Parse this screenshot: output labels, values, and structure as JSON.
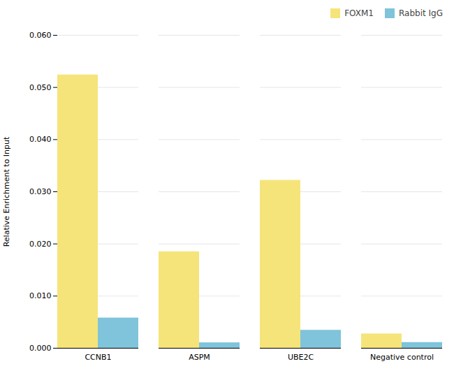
{
  "chart_data": {
    "type": "bar",
    "categories": [
      "CCNB1",
      "ASPM",
      "UBE2C",
      "Negative control"
    ],
    "series": [
      {
        "name": "FOXM1",
        "color": "#F5E47A",
        "values": [
          0.0524,
          0.0185,
          0.0322,
          0.00275
        ]
      },
      {
        "name": "Rabbit IgG",
        "color": "#7FC4DA",
        "values": [
          0.0058,
          0.00105,
          0.00345,
          0.0011
        ]
      }
    ],
    "ylabel": "Relative Enrichment to Input",
    "ylim": [
      0,
      0.06
    ],
    "yticks": [
      {
        "value": 0.0,
        "label": "0.000"
      },
      {
        "value": 0.01,
        "label": "0.010"
      },
      {
        "value": 0.02,
        "label": "0.020"
      },
      {
        "value": 0.03,
        "label": "0.030"
      },
      {
        "value": 0.04,
        "label": "0.040"
      },
      {
        "value": 0.05,
        "label": "0.050"
      },
      {
        "value": 0.06,
        "label": "0.060"
      }
    ],
    "grid": true,
    "legend": "upper right"
  }
}
